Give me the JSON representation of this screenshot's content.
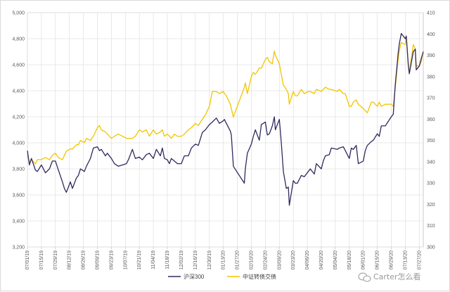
{
  "chart_data": {
    "type": "line",
    "title": "",
    "xlabel": "",
    "ylabel": "",
    "x_ticks": [
      "07/01/19",
      "07/15/19",
      "07/29/19",
      "08/12/19",
      "08/26/19",
      "09/09/19",
      "09/23/19",
      "10/07/19",
      "10/21/19",
      "11/04/19",
      "11/18/19",
      "12/02/19",
      "12/16/19",
      "12/30/19",
      "01/13/20",
      "01/27/20",
      "02/10/20",
      "02/24/20",
      "03/09/20",
      "03/23/20",
      "04/06/20",
      "04/20/20",
      "05/04/20",
      "05/18/20",
      "06/01/20",
      "06/15/20",
      "06/29/20",
      "07/13/20",
      "07/27/20"
    ],
    "y_left": {
      "lim": [
        3200,
        5000
      ],
      "ticks": [
        "3,200",
        "3,400",
        "3,600",
        "3,800",
        "4,000",
        "4,200",
        "4,400",
        "4,600",
        "4,800",
        "5,000"
      ]
    },
    "y_right": {
      "lim": [
        300,
        410
      ],
      "ticks": [
        "300",
        "310",
        "320",
        "330",
        "340",
        "350",
        "360",
        "370",
        "380",
        "390",
        "400",
        "410"
      ]
    },
    "grid": true,
    "legend_position": "bottom",
    "series": [
      {
        "name": "沪深300",
        "axis": "left",
        "color": "#2e2a5e",
        "x": [
          "07/01/19",
          "07/03/19",
          "07/05/19",
          "07/09/19",
          "07/11/19",
          "07/15/19",
          "07/19/19",
          "07/23/19",
          "07/26/19",
          "07/29/19",
          "08/01/19",
          "08/05/19",
          "08/07/19",
          "08/09/19",
          "08/13/19",
          "08/15/19",
          "08/19/19",
          "08/21/19",
          "08/23/19",
          "08/27/19",
          "08/29/19",
          "09/02/19",
          "09/05/19",
          "09/09/19",
          "09/11/19",
          "09/13/19",
          "09/17/19",
          "09/19/19",
          "09/23/19",
          "09/26/19",
          "09/30/19",
          "10/08/19",
          "10/10/19",
          "10/14/19",
          "10/17/19",
          "10/21/19",
          "10/24/19",
          "10/28/19",
          "10/31/19",
          "11/04/19",
          "11/07/19",
          "11/11/19",
          "11/13/19",
          "11/15/19",
          "11/18/19",
          "11/20/19",
          "11/22/19",
          "11/25/19",
          "11/28/19",
          "12/02/19",
          "12/05/19",
          "12/09/19",
          "12/12/19",
          "12/16/19",
          "12/19/19",
          "12/23/19",
          "12/26/19",
          "12/30/19",
          "01/02/20",
          "01/06/20",
          "01/09/20",
          "01/13/20",
          "01/14/20",
          "01/16/20",
          "01/20/20",
          "01/21/20",
          "01/23/20",
          "02/03/20",
          "02/04/20",
          "02/06/20",
          "02/10/20",
          "02/12/20",
          "02/14/20",
          "02/18/20",
          "02/20/20",
          "02/24/20",
          "02/26/20",
          "02/28/20",
          "03/02/20",
          "03/04/20",
          "03/05/20",
          "03/09/20",
          "03/11/20",
          "03/13/20",
          "03/16/20",
          "03/18/20",
          "03/19/20",
          "03/23/20",
          "03/25/20",
          "03/27/20",
          "03/31/20",
          "04/03/20",
          "04/07/20",
          "04/09/20",
          "04/13/20",
          "04/15/20",
          "04/20/20",
          "04/22/20",
          "04/24/20",
          "04/28/20",
          "04/30/20",
          "05/06/20",
          "05/08/20",
          "05/12/20",
          "05/14/20",
          "05/18/20",
          "05/20/20",
          "05/22/20",
          "05/25/20",
          "05/27/20",
          "06/01/20",
          "06/03/20",
          "06/05/20",
          "06/09/20",
          "06/11/20",
          "06/15/20",
          "06/17/20",
          "06/19/20",
          "06/23/20",
          "06/29/20",
          "07/01/20",
          "07/03/20",
          "07/06/20",
          "07/07/20",
          "07/09/20",
          "07/13/20",
          "07/14/20",
          "07/16/20",
          "07/17/20",
          "07/21/20",
          "07/23/20",
          "07/24/20",
          "07/27/20",
          "07/29/20",
          "07/31/20"
        ],
        "values": [
          3940,
          3830,
          3880,
          3790,
          3780,
          3830,
          3770,
          3800,
          3860,
          3860,
          3790,
          3700,
          3650,
          3620,
          3700,
          3650,
          3730,
          3750,
          3800,
          3780,
          3820,
          3880,
          3960,
          3970,
          3940,
          3950,
          3900,
          3920,
          3880,
          3840,
          3820,
          3840,
          3870,
          3950,
          3880,
          3890,
          3870,
          3910,
          3920,
          3880,
          3950,
          3900,
          3960,
          3880,
          3870,
          3840,
          3880,
          3860,
          3840,
          3840,
          3900,
          3900,
          3960,
          3990,
          3980,
          4080,
          4100,
          4140,
          4160,
          4190,
          4150,
          4170,
          4180,
          4150,
          4090,
          4060,
          3820,
          3690,
          3800,
          3920,
          3990,
          4050,
          4100,
          4020,
          4140,
          4160,
          4060,
          4070,
          4130,
          4200,
          4100,
          4180,
          4000,
          3780,
          3650,
          3660,
          3520,
          3710,
          3690,
          3690,
          3750,
          3740,
          3780,
          3800,
          3760,
          3840,
          3800,
          3860,
          3900,
          3910,
          3960,
          3950,
          3960,
          3970,
          3940,
          3880,
          3960,
          3950,
          3980,
          3840,
          3860,
          3940,
          3980,
          4010,
          4020,
          4070,
          4050,
          4130,
          4130,
          4200,
          4220,
          4450,
          4700,
          4760,
          4840,
          4800,
          4820,
          4600,
          4530,
          4700,
          4720,
          4560,
          4590,
          4650,
          4700
        ]
      },
      {
        "name": "中证转债交债",
        "axis": "right",
        "color": "#f2c500",
        "x": [
          "07/01/19",
          "07/03/19",
          "07/05/19",
          "07/09/19",
          "07/11/19",
          "07/15/19",
          "07/19/19",
          "07/23/19",
          "07/26/19",
          "07/29/19",
          "08/01/19",
          "08/05/19",
          "08/07/19",
          "08/09/19",
          "08/13/19",
          "08/15/19",
          "08/19/19",
          "08/21/19",
          "08/23/19",
          "08/27/19",
          "08/29/19",
          "09/02/19",
          "09/05/19",
          "09/09/19",
          "09/11/19",
          "09/13/19",
          "09/17/19",
          "09/19/19",
          "09/23/19",
          "09/26/19",
          "09/30/19",
          "10/08/19",
          "10/10/19",
          "10/14/19",
          "10/17/19",
          "10/21/19",
          "10/24/19",
          "10/28/19",
          "10/31/19",
          "11/04/19",
          "11/07/19",
          "11/11/19",
          "11/13/19",
          "11/15/19",
          "11/18/19",
          "11/20/19",
          "11/22/19",
          "11/25/19",
          "11/28/19",
          "12/02/19",
          "12/05/19",
          "12/09/19",
          "12/12/19",
          "12/16/19",
          "12/19/19",
          "12/23/19",
          "12/26/19",
          "12/30/19",
          "01/02/20",
          "01/06/20",
          "01/09/20",
          "01/13/20",
          "01/14/20",
          "01/16/20",
          "01/20/20",
          "01/21/20",
          "01/23/20",
          "02/03/20",
          "02/04/20",
          "02/06/20",
          "02/10/20",
          "02/12/20",
          "02/14/20",
          "02/18/20",
          "02/20/20",
          "02/24/20",
          "02/26/20",
          "02/28/20",
          "03/02/20",
          "03/04/20",
          "03/05/20",
          "03/09/20",
          "03/11/20",
          "03/13/20",
          "03/16/20",
          "03/18/20",
          "03/19/20",
          "03/23/20",
          "03/25/20",
          "03/27/20",
          "03/31/20",
          "04/03/20",
          "04/07/20",
          "04/09/20",
          "04/13/20",
          "04/15/20",
          "04/20/20",
          "04/22/20",
          "04/24/20",
          "04/28/20",
          "04/30/20",
          "05/06/20",
          "05/08/20",
          "05/12/20",
          "05/14/20",
          "05/18/20",
          "05/20/20",
          "05/22/20",
          "05/25/20",
          "05/27/20",
          "06/01/20",
          "06/03/20",
          "06/05/20",
          "06/09/20",
          "06/11/20",
          "06/15/20",
          "06/17/20",
          "06/19/20",
          "06/23/20",
          "06/29/20",
          "07/01/20",
          "07/03/20",
          "07/06/20",
          "07/07/20",
          "07/09/20",
          "07/13/20",
          "07/14/20",
          "07/16/20",
          "07/17/20",
          "07/21/20",
          "07/23/20",
          "07/24/20",
          "07/27/20",
          "07/29/20",
          "07/31/20"
        ],
        "values": [
          343,
          340,
          341,
          339,
          341,
          341,
          342,
          341,
          343,
          344,
          342,
          341,
          343,
          345,
          346,
          346,
          348,
          348,
          350,
          349,
          351,
          350,
          352,
          356,
          357,
          355,
          354,
          353,
          351,
          352,
          353,
          351,
          351,
          351,
          352,
          355,
          354,
          355,
          352,
          355,
          353,
          354,
          355,
          352,
          353,
          352,
          351,
          353,
          352,
          352,
          353,
          355,
          356,
          358,
          357,
          360,
          362,
          366,
          373,
          373,
          372,
          373,
          372,
          371,
          367,
          365,
          361,
          375,
          377,
          372,
          380,
          382,
          381,
          384,
          384,
          388,
          389,
          387,
          386,
          392,
          390,
          386,
          381,
          376,
          374,
          372,
          367,
          373,
          371,
          371,
          374,
          372,
          373,
          373,
          372,
          374,
          373,
          374,
          375,
          374,
          374,
          373,
          374,
          372,
          372,
          366,
          366,
          368,
          369,
          367,
          365,
          364,
          363,
          368,
          368,
          366,
          368,
          366,
          367,
          367,
          366,
          375,
          389,
          392,
          396,
          395,
          399,
          385,
          382,
          395,
          393,
          385,
          385,
          387,
          392
        ]
      }
    ]
  },
  "legend": {
    "items": [
      {
        "label": "沪深300",
        "color": "#2e2a5e"
      },
      {
        "label": "中证转债交债",
        "color": "#f2c500"
      }
    ]
  },
  "watermark": {
    "text": "Carter怎么看"
  }
}
